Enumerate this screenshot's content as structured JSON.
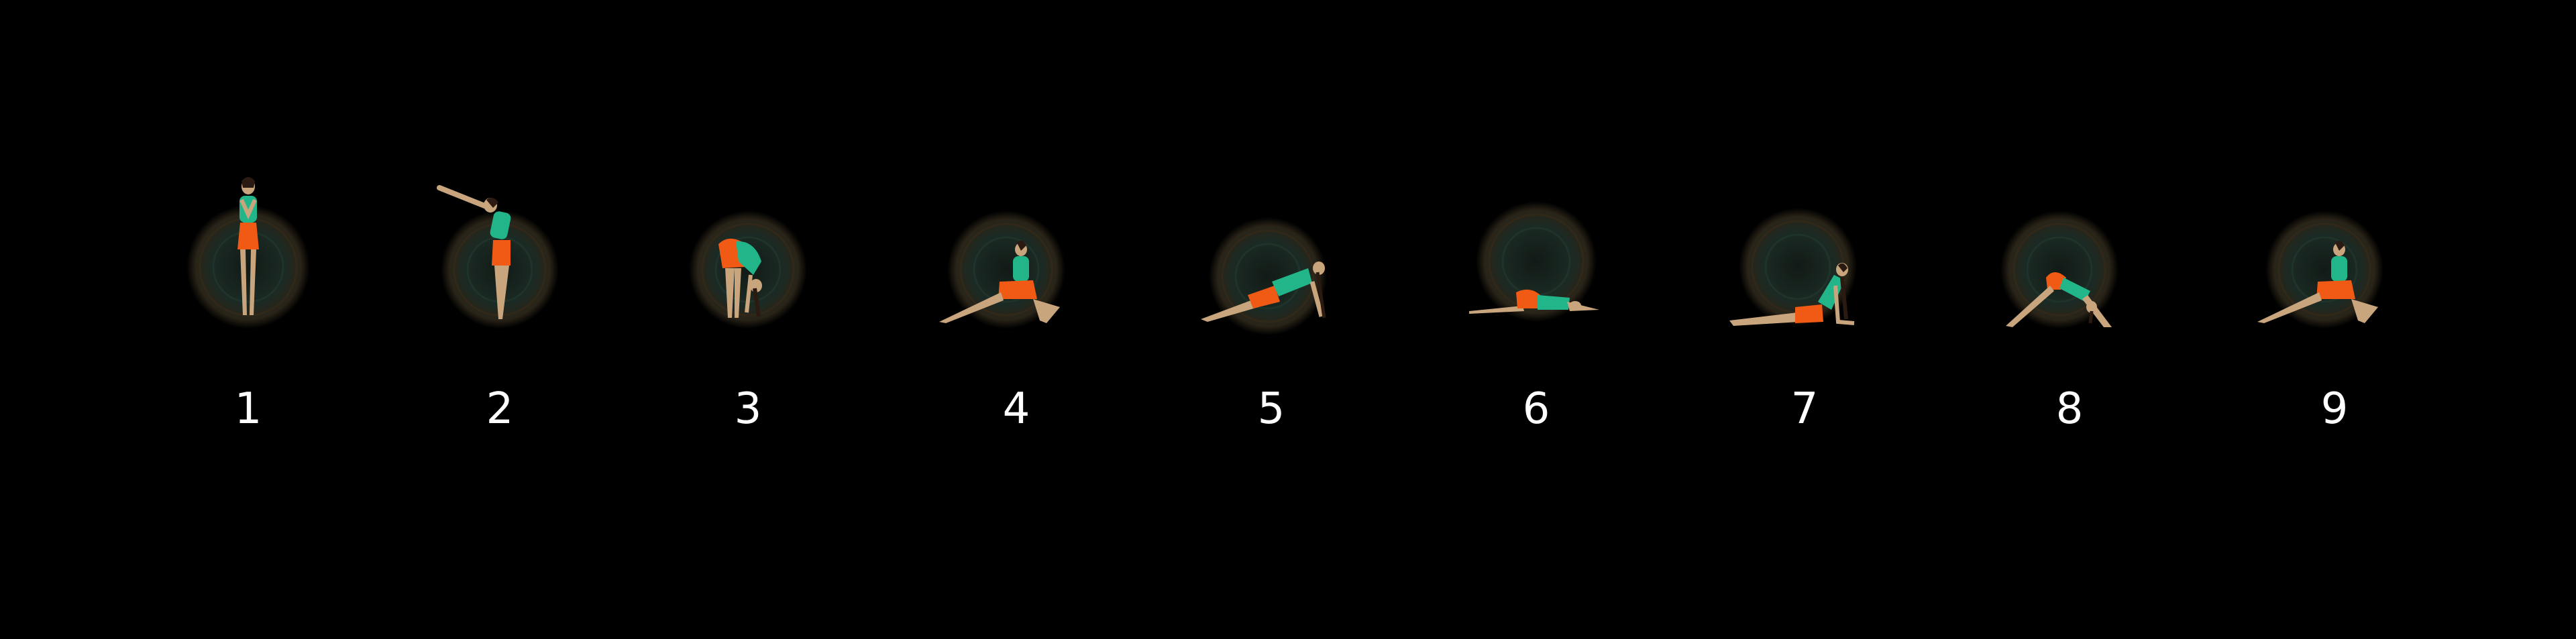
{
  "steps": [
    {
      "number": "1",
      "pose": "prayer-pose"
    },
    {
      "number": "2",
      "pose": "raised-arms-pose"
    },
    {
      "number": "3",
      "pose": "forward-bend-pose"
    },
    {
      "number": "4",
      "pose": "lunge-pose"
    },
    {
      "number": "5",
      "pose": "plank-pose"
    },
    {
      "number": "6",
      "pose": "eight-point-pose"
    },
    {
      "number": "7",
      "pose": "cobra-pose"
    },
    {
      "number": "8",
      "pose": "downward-dog-pose"
    },
    {
      "number": "9",
      "pose": "lunge-pose"
    }
  ],
  "colors": {
    "background": "#000000",
    "halo": "#1b2a24",
    "halo_ring": "#3a2a18",
    "skin": "#c9a57d",
    "top": "#22b58a",
    "shorts": "#f05a14",
    "hair": "#2a1a12",
    "label": "#ffffff"
  }
}
